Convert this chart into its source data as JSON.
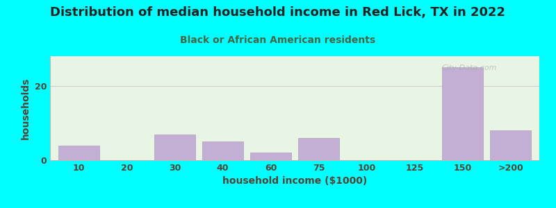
{
  "title": "Distribution of median household income in Red Lick, TX in 2022",
  "subtitle": "Black or African American residents",
  "xlabel": "household income ($1000)",
  "ylabel": "households",
  "background_outer": "#00FFFF",
  "background_inner": "#e8f5e5",
  "bar_color": "#c4afd4",
  "bar_edge_color": "#b09cc0",
  "title_color": "#222222",
  "subtitle_color": "#446644",
  "axis_label_color": "#554433",
  "tick_label_color": "#554433",
  "categories": [
    "10",
    "20",
    "30",
    "40",
    "60",
    "75",
    "100",
    "125",
    "150",
    ">200"
  ],
  "values": [
    4,
    0,
    7,
    5,
    2,
    6,
    0,
    0,
    25,
    8
  ],
  "ylim": [
    0,
    28
  ],
  "yticks": [
    0,
    20
  ],
  "figsize": [
    8.0,
    3.0
  ],
  "dpi": 100,
  "watermark": "City-Data.com"
}
